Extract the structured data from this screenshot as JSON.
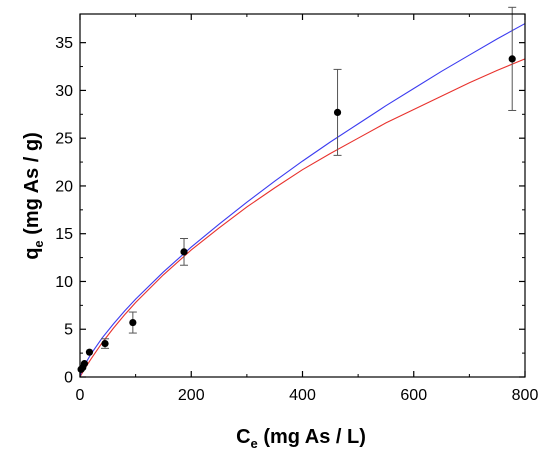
{
  "chart_data": {
    "type": "scatter",
    "title": "",
    "xlabel": {
      "base": "C",
      "sub": "e",
      "rest": " (mg As / L)"
    },
    "ylabel": {
      "base": "q",
      "sub": "e",
      "rest": " (mg As / g)"
    },
    "xlim": [
      0,
      800
    ],
    "ylim": [
      0,
      38
    ],
    "xticks": [
      0,
      200,
      400,
      600,
      800
    ],
    "yticks": [
      0,
      5,
      10,
      15,
      20,
      25,
      30,
      35
    ],
    "grid": false,
    "legend": false,
    "series": [
      {
        "kind": "points",
        "color": "#000000",
        "x": [
          2,
          5,
          8,
          17,
          45,
          95,
          187,
          463,
          777
        ],
        "y": [
          0.8,
          1.0,
          1.4,
          2.6,
          3.5,
          5.7,
          13.1,
          27.7,
          33.3
        ],
        "err": [
          0,
          0,
          0,
          0,
          0.5,
          1.1,
          1.4,
          4.5,
          5.4
        ]
      },
      {
        "kind": "curve",
        "color": "#e8322d",
        "x": [
          0,
          2,
          5,
          10,
          20,
          40,
          60,
          80,
          100,
          150,
          200,
          250,
          300,
          350,
          400,
          450,
          500,
          550,
          600,
          650,
          700,
          750,
          800
        ],
        "y": [
          0,
          0.2,
          0.51,
          1.0,
          1.9,
          3.6,
          5.1,
          6.5,
          7.8,
          10.7,
          13.3,
          15.6,
          17.8,
          19.8,
          21.7,
          23.4,
          25.0,
          26.6,
          28.0,
          29.4,
          30.8,
          32.1,
          33.3
        ]
      },
      {
        "kind": "curve",
        "color": "#3c3cf0",
        "x": [
          0,
          2,
          5,
          10,
          20,
          40,
          60,
          80,
          100,
          150,
          200,
          250,
          300,
          350,
          400,
          450,
          500,
          550,
          600,
          650,
          700,
          750,
          800
        ],
        "y": [
          0,
          0.44,
          0.85,
          1.44,
          2.43,
          4.1,
          5.55,
          6.9,
          8.15,
          11.0,
          13.6,
          16.0,
          18.3,
          20.5,
          22.6,
          24.6,
          26.5,
          28.4,
          30.2,
          32.0,
          33.7,
          35.4,
          37.0
        ]
      }
    ]
  }
}
